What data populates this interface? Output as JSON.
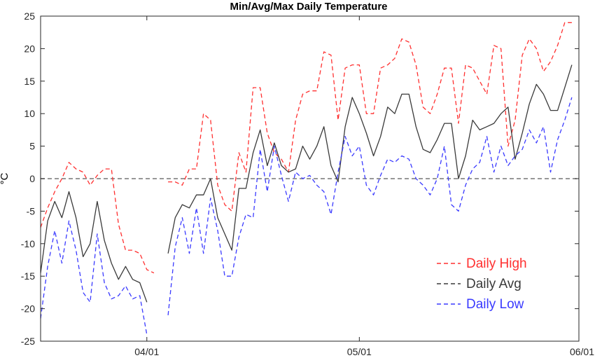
{
  "chart_data": {
    "type": "line",
    "title": "Min/Avg/Max Daily Temperature",
    "xlabel": "",
    "ylabel": "°C",
    "x_start": "2020-03-17",
    "x_end": "2020-06-01",
    "xticks": [
      {
        "date": "2020-04-01",
        "label": "04/01"
      },
      {
        "date": "2020-05-01",
        "label": "05/01"
      },
      {
        "date": "2020-06-01",
        "label": "06/01"
      }
    ],
    "ylim": [
      -25,
      25
    ],
    "yticks": [
      -25,
      -20,
      -15,
      -10,
      -5,
      0,
      5,
      10,
      15,
      20,
      25
    ],
    "zero_line": {
      "y": 0,
      "style": "dashed",
      "color": "#777777"
    },
    "legend_position": "bottom-right",
    "series": [
      {
        "name": "Daily High",
        "color": "#ff3030",
        "style": "dashed",
        "segments": [
          {
            "start_date": "2020-03-17",
            "values": [
              -7.5,
              -4.5,
              -2,
              0,
              2.5,
              1.5,
              1,
              -1,
              0.5,
              1.5,
              1.5,
              -7,
              -11,
              -11,
              -11.5,
              -14,
              -14.5
            ]
          },
          {
            "start_date": "2020-04-04",
            "values": [
              -0.5,
              -0.5,
              -1,
              1.5,
              1.5,
              10,
              9,
              -1,
              -4,
              -5,
              4,
              1,
              14,
              14,
              7,
              4,
              3,
              1,
              9,
              13,
              13.5,
              13.5,
              19.5,
              19,
              9,
              17,
              17.5,
              17.5,
              10,
              10,
              17,
              17.5,
              18.5,
              21.5,
              21,
              17.5,
              11,
              10,
              13,
              17,
              17,
              8.5,
              17.5,
              17,
              15,
              13,
              20.5,
              20,
              5,
              9,
              19,
              21.5,
              20,
              16.5,
              18,
              20.5,
              24,
              24
            ]
          }
        ]
      },
      {
        "name": "Daily Avg",
        "color": "#3a3a3a",
        "style": "solid",
        "segments": [
          {
            "start_date": "2020-03-17",
            "values": [
              -14.5,
              -6.5,
              -3.5,
              -6,
              -2,
              -6,
              -12,
              -10,
              -3.5,
              -9.5,
              -13,
              -15.5,
              -13.5,
              -15.5,
              -16,
              -19
            ]
          },
          {
            "start_date": "2020-04-04",
            "values": [
              -11.5,
              -6,
              -4,
              -4.5,
              -2.5,
              -2.5,
              0,
              -6,
              -8.5,
              -11,
              -1.5,
              -1.5,
              4,
              7.5,
              2,
              5.5,
              2,
              1,
              1.5,
              5,
              3,
              5,
              8,
              2,
              -0.5,
              8,
              12.5,
              10,
              7,
              3.5,
              6.5,
              11,
              10,
              13,
              13,
              8,
              4.5,
              4,
              6,
              8.5,
              8.5,
              0,
              3.5,
              9,
              7.5,
              8,
              8.5,
              10,
              11,
              3,
              7,
              11.5,
              14.5,
              13,
              10.5,
              10.5,
              14,
              17.5
            ]
          }
        ]
      },
      {
        "name": "Daily Low",
        "color": "#3a3aff",
        "style": "dashed",
        "segments": [
          {
            "start_date": "2020-03-17",
            "values": [
              -21.5,
              -13.5,
              -8,
              -13,
              -6.5,
              -11,
              -17.5,
              -19,
              -8.5,
              -16,
              -18.5,
              -18,
              -16.5,
              -18.5,
              -18,
              -24
            ]
          },
          {
            "start_date": "2020-04-04",
            "values": [
              -21,
              -10.5,
              -6,
              -11.5,
              -4.5,
              -11.5,
              -3,
              -8,
              -15,
              -15,
              -9,
              -5.5,
              -6,
              4.5,
              -2,
              5,
              0.5,
              -3.5,
              1,
              0,
              0.5,
              -1,
              -2,
              -5.5,
              1,
              6.5,
              3.5,
              5,
              -1,
              -2.5,
              0.5,
              3,
              2.5,
              3.5,
              3,
              0,
              -1,
              -2.5,
              0,
              5,
              -4,
              -5,
              -1,
              1.5,
              2.5,
              6.5,
              1,
              5,
              2,
              3.5,
              4.5,
              7.5,
              5.5,
              8,
              1,
              6,
              9,
              12.5
            ]
          }
        ]
      }
    ]
  }
}
